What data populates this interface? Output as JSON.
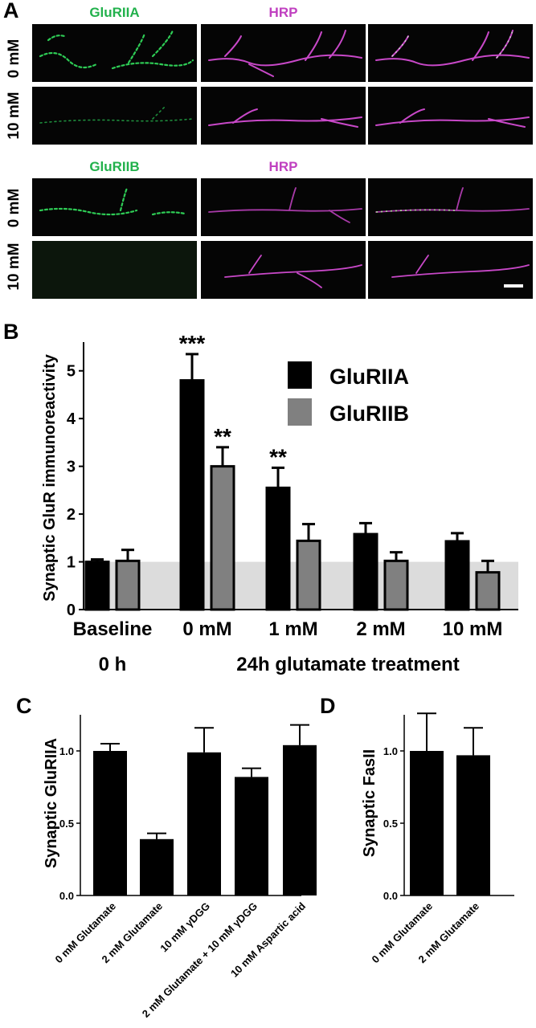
{
  "panel_labels": {
    "a": "A",
    "b": "B",
    "c": "C",
    "d": "D"
  },
  "panel_a": {
    "set1": {
      "ch_green": "GluRIIA",
      "ch_magenta": "HRP",
      "row_top": "0 mM",
      "row_bottom": "10 mM"
    },
    "set2": {
      "ch_green": "GluRIIB",
      "ch_magenta": "HRP",
      "row_top": "0 mM",
      "row_bottom": "10 mM"
    },
    "colors": {
      "green": "#22b14c",
      "magenta": "#c040c0"
    }
  },
  "chart_data": [
    {
      "type": "bar",
      "panel": "B",
      "ylabel": "Synaptic  GluR  immunoreactivity",
      "ylim": [
        0,
        5.5
      ],
      "yticks": [
        0,
        1,
        2,
        3,
        4,
        5
      ],
      "categories": [
        "Baseline",
        "0 mM",
        "1 mM",
        "2 mM",
        "10 mM"
      ],
      "group_labels": {
        "left": "0 h",
        "right": "24h glutamate treatment"
      },
      "baseline_band": 1.0,
      "legend": {
        "position": "top-right"
      },
      "series": [
        {
          "name": "GluRIIA",
          "color": "#000000",
          "values": [
            1.0,
            4.8,
            2.55,
            1.58,
            1.43
          ],
          "errors": [
            0.05,
            0.55,
            0.42,
            0.23,
            0.17
          ],
          "sig": [
            "",
            "***",
            "**",
            "",
            ""
          ]
        },
        {
          "name": "GluRIIB",
          "color": "#808080",
          "values": [
            1.02,
            3.0,
            1.44,
            1.02,
            0.78
          ],
          "errors": [
            0.23,
            0.4,
            0.35,
            0.18,
            0.24
          ],
          "sig": [
            "",
            "**",
            "",
            "",
            ""
          ]
        }
      ]
    },
    {
      "type": "bar",
      "panel": "C",
      "ylabel": "Synaptic GluRIIA",
      "ylim": [
        0,
        1.25
      ],
      "yticks": [
        "0.0",
        "0.5",
        "1.0"
      ],
      "categories": [
        "0 mM Glutamate",
        "2 mM Glutamate",
        "10 mM γDGG",
        "2 mM Glutamate + 10 mM γDGG",
        "10 mM Aspartic acid"
      ],
      "values": [
        1.0,
        0.39,
        0.99,
        0.82,
        1.04
      ],
      "errors": [
        0.05,
        0.04,
        0.17,
        0.06,
        0.14
      ],
      "color": "#000000"
    },
    {
      "type": "bar",
      "panel": "D",
      "ylabel": "Synaptic FasII",
      "ylim": [
        0,
        1.25
      ],
      "yticks": [
        "0.0",
        "0.5",
        "1.0"
      ],
      "categories": [
        "0 mM Glutamate",
        "2 mM Glutamate"
      ],
      "values": [
        1.0,
        0.97
      ],
      "errors": [
        0.26,
        0.19
      ],
      "color": "#000000"
    }
  ]
}
